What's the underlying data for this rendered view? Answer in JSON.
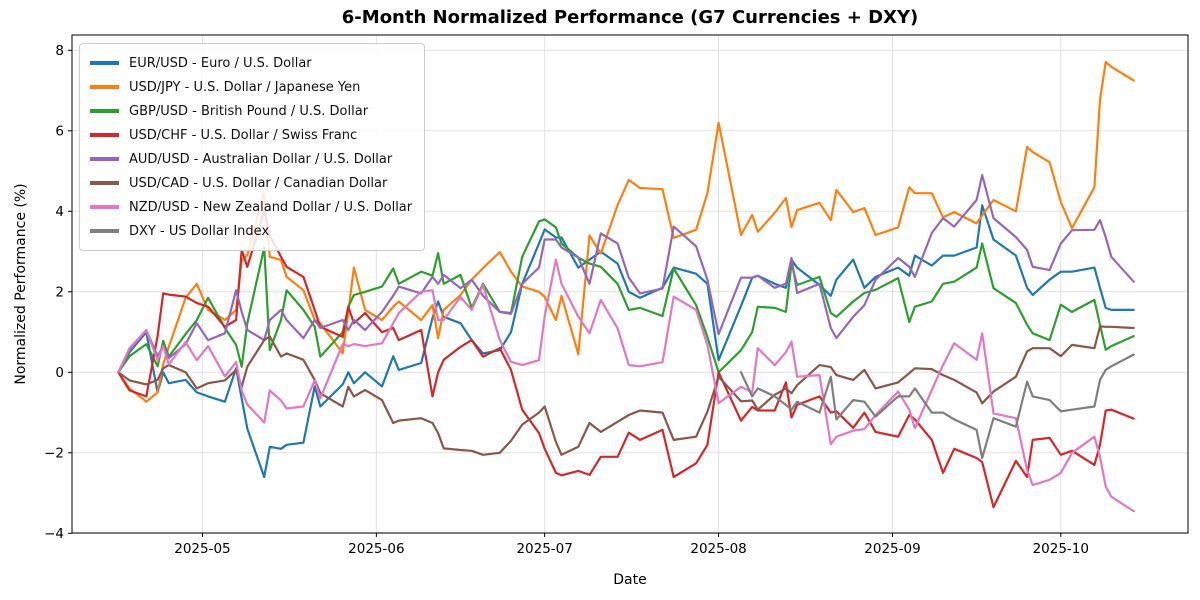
{
  "header": {
    "title": "6-Month Normalized Performance (G7 Currencies + DXY)"
  },
  "axes": {
    "xlabel": "Date",
    "ylabel": "Normalized Performance (%)",
    "x_ticks": [
      {
        "date": "2025-05-01",
        "label": "2025-05"
      },
      {
        "date": "2025-06-01",
        "label": "2025-06"
      },
      {
        "date": "2025-07-01",
        "label": "2025-07"
      },
      {
        "date": "2025-08-01",
        "label": "2025-08"
      },
      {
        "date": "2025-09-01",
        "label": "2025-09"
      },
      {
        "date": "2025-10-01",
        "label": "2025-10"
      }
    ],
    "y_ticks": [
      8,
      6,
      4,
      2,
      0,
      -2,
      -4
    ]
  },
  "chart_data": {
    "type": "line",
    "title": "6-Month Normalized Performance (G7 Currencies + DXY)",
    "xlabel": "Date",
    "ylabel": "Normalized Performance (%)",
    "grid": true,
    "legend_position": "upper left",
    "ylim": [
      -4.05,
      8.38
    ],
    "xlim": [
      "2025-04-08",
      "2025-10-24"
    ],
    "x": [
      "2025-04-16",
      "2025-04-18",
      "2025-04-21",
      "2025-04-23",
      "2025-04-24",
      "2025-04-25",
      "2025-04-28",
      "2025-04-30",
      "2025-05-02",
      "2025-05-05",
      "2025-05-07",
      "2025-05-08",
      "2025-05-09",
      "2025-05-12",
      "2025-05-13",
      "2025-05-15",
      "2025-05-16",
      "2025-05-19",
      "2025-05-21",
      "2025-05-22",
      "2025-05-26",
      "2025-05-27",
      "2025-05-28",
      "2025-05-30",
      "2025-06-02",
      "2025-06-04",
      "2025-06-05",
      "2025-06-09",
      "2025-06-11",
      "2025-06-12",
      "2025-06-13",
      "2025-06-16",
      "2025-06-18",
      "2025-06-20",
      "2025-06-23",
      "2025-06-25",
      "2025-06-27",
      "2025-06-30",
      "2025-07-01",
      "2025-07-03",
      "2025-07-04",
      "2025-07-07",
      "2025-07-09",
      "2025-07-11",
      "2025-07-14",
      "2025-07-16",
      "2025-07-18",
      "2025-07-22",
      "2025-07-24",
      "2025-07-28",
      "2025-07-30",
      "2025-08-01",
      "2025-08-05",
      "2025-08-07",
      "2025-08-08",
      "2025-08-11",
      "2025-08-13",
      "2025-08-14",
      "2025-08-15",
      "2025-08-19",
      "2025-08-21",
      "2025-08-22",
      "2025-08-25",
      "2025-08-27",
      "2025-08-29",
      "2025-09-02",
      "2025-09-04",
      "2025-09-05",
      "2025-09-08",
      "2025-09-10",
      "2025-09-12",
      "2025-09-16",
      "2025-09-17",
      "2025-09-19",
      "2025-09-23",
      "2025-09-25",
      "2025-09-26",
      "2025-09-29",
      "2025-10-01",
      "2025-10-03",
      "2025-10-07",
      "2025-10-08",
      "2025-10-09",
      "2025-10-10",
      "2025-10-14"
    ],
    "series": [
      {
        "name": "EUR/USD - Euro / U.S. Dollar",
        "color": "#1f77b4",
        "values": [
          0,
          0.5,
          1.0,
          -0.5,
          0.0,
          -0.27,
          -0.19,
          -0.5,
          -0.6,
          -0.73,
          0.1,
          -0.65,
          -1.4,
          -2.6,
          -1.85,
          -1.9,
          -1.8,
          -1.75,
          -0.35,
          -0.85,
          -0.3,
          0.0,
          -0.27,
          0.0,
          -0.35,
          0.4,
          0.06,
          0.23,
          1.35,
          1.76,
          1.38,
          1.22,
          0.8,
          0.47,
          0.55,
          1.0,
          2.2,
          3.2,
          3.55,
          3.35,
          3.35,
          2.6,
          2.8,
          3.0,
          2.7,
          2.0,
          1.85,
          2.1,
          2.6,
          2.45,
          2.2,
          0.3,
          1.65,
          2.35,
          2.4,
          2.2,
          2.1,
          2.8,
          2.6,
          2.17,
          1.9,
          2.3,
          2.8,
          2.1,
          2.37,
          2.6,
          2.4,
          2.9,
          2.65,
          2.9,
          2.9,
          3.1,
          4.15,
          3.3,
          2.9,
          2.1,
          1.92,
          2.3,
          2.5,
          2.5,
          2.6,
          2.1,
          1.6,
          1.55,
          1.55
        ]
      },
      {
        "name": "USD/JPY - U.S. Dollar / Japanese Yen",
        "color": "#ff7f0e",
        "values": [
          0,
          -0.4,
          -0.73,
          -0.5,
          0.2,
          0.63,
          1.85,
          2.2,
          1.55,
          1.3,
          1.55,
          2.79,
          2.91,
          4.45,
          2.87,
          2.79,
          2.37,
          2.04,
          1.3,
          1.22,
          0.47,
          1.5,
          2.6,
          1.55,
          1.3,
          1.63,
          1.76,
          1.3,
          1.67,
          0.85,
          1.55,
          1.92,
          2.3,
          2.59,
          2.99,
          2.5,
          2.13,
          2.0,
          1.87,
          1.3,
          1.9,
          0.45,
          3.4,
          2.95,
          4.16,
          4.78,
          4.58,
          4.55,
          3.34,
          3.54,
          4.45,
          6.2,
          3.41,
          3.91,
          3.49,
          3.96,
          4.33,
          3.61,
          4.03,
          4.21,
          3.78,
          4.53,
          3.98,
          4.08,
          3.41,
          3.6,
          4.6,
          4.45,
          4.45,
          3.85,
          3.98,
          3.7,
          3.9,
          4.28,
          4.0,
          5.6,
          5.47,
          5.22,
          4.23,
          3.58,
          4.6,
          6.77,
          7.71,
          7.59,
          7.25
        ]
      },
      {
        "name": "GBP/USD - British Pound / U.S. Dollar",
        "color": "#2ca02c",
        "values": [
          0,
          0.4,
          0.7,
          0.15,
          0.78,
          0.39,
          0.95,
          1.3,
          1.85,
          1.1,
          0.68,
          0.14,
          1.22,
          3.1,
          0.55,
          1.3,
          2.04,
          1.55,
          1.13,
          0.39,
          1.0,
          1.63,
          1.92,
          2.0,
          2.13,
          2.58,
          2.2,
          2.5,
          2.4,
          2.96,
          2.2,
          2.42,
          1.6,
          2.2,
          1.5,
          1.47,
          2.87,
          3.75,
          3.8,
          3.6,
          3.2,
          2.85,
          2.7,
          2.62,
          2.2,
          1.55,
          1.6,
          1.4,
          2.58,
          1.67,
          0.88,
          0.0,
          0.55,
          1.0,
          1.63,
          1.6,
          1.5,
          2.7,
          2.17,
          2.37,
          1.47,
          1.38,
          1.76,
          1.97,
          2.05,
          2.34,
          1.25,
          1.63,
          1.76,
          2.2,
          2.25,
          2.6,
          3.2,
          2.09,
          1.72,
          1.18,
          0.97,
          0.8,
          1.68,
          1.5,
          1.8,
          1.18,
          0.56,
          0.65,
          0.9
        ]
      },
      {
        "name": "USD/CHF - U.S. Dollar / Swiss Franc",
        "color": "#d62728",
        "values": [
          0,
          -0.45,
          -0.6,
          0.9,
          1.96,
          1.93,
          1.88,
          1.72,
          1.63,
          1.13,
          1.3,
          3.04,
          2.62,
          4.0,
          3.4,
          2.87,
          2.62,
          2.37,
          1.55,
          1.13,
          0.88,
          1.63,
          1.22,
          1.47,
          1.0,
          1.1,
          0.8,
          1.05,
          -0.6,
          0.0,
          0.31,
          0.63,
          0.8,
          0.39,
          0.6,
          0.06,
          -0.93,
          -1.51,
          -1.9,
          -2.5,
          -2.56,
          -2.45,
          -2.55,
          -2.1,
          -2.1,
          -1.5,
          -1.68,
          -1.43,
          -2.6,
          -2.26,
          -1.8,
          0.0,
          -1.2,
          -0.86,
          -0.95,
          -0.95,
          -0.25,
          -1.12,
          -0.81,
          -0.6,
          -1.0,
          -0.97,
          -1.38,
          -1.0,
          -1.48,
          -1.6,
          -1.06,
          -1.17,
          -1.68,
          -2.5,
          -1.9,
          -2.13,
          -2.23,
          -3.35,
          -2.2,
          -2.6,
          -1.68,
          -1.63,
          -2.05,
          -1.95,
          -2.3,
          -1.8,
          -0.95,
          -0.93,
          -1.15
        ]
      },
      {
        "name": "AUD/USD - Australian Dollar / U.S. Dollar",
        "color": "#9467bd",
        "values": [
          0,
          0.55,
          1.05,
          0.4,
          0.65,
          0.35,
          0.7,
          1.22,
          0.8,
          0.97,
          2.04,
          1.5,
          1.05,
          0.8,
          1.3,
          1.55,
          1.3,
          0.85,
          1.3,
          1.1,
          1.3,
          1.05,
          1.3,
          1.05,
          1.5,
          1.9,
          2.13,
          1.96,
          2.37,
          2.2,
          2.42,
          2.09,
          2.3,
          1.9,
          1.5,
          1.45,
          2.2,
          2.6,
          3.3,
          3.3,
          3.1,
          2.85,
          2.2,
          3.45,
          3.2,
          2.35,
          1.96,
          2.08,
          3.62,
          3.13,
          2.3,
          0.95,
          2.35,
          2.35,
          2.4,
          2.1,
          2.2,
          2.84,
          1.97,
          2.2,
          1.1,
          0.85,
          1.38,
          1.67,
          2.3,
          2.84,
          2.62,
          2.37,
          3.46,
          3.83,
          3.62,
          4.28,
          4.9,
          3.83,
          3.36,
          3.04,
          2.62,
          2.54,
          3.2,
          3.53,
          3.54,
          3.78,
          3.36,
          2.87,
          2.25
        ]
      },
      {
        "name": "USD/CAD - U.S. Dollar / Canadian Dollar",
        "color": "#8c564b",
        "values": [
          0,
          -0.2,
          -0.3,
          -0.19,
          0.1,
          0.18,
          0.0,
          -0.4,
          -0.27,
          -0.2,
          0.06,
          -0.36,
          0.14,
          0.8,
          0.89,
          0.39,
          0.47,
          0.31,
          -0.19,
          -0.52,
          -0.85,
          -0.36,
          -0.6,
          -0.44,
          -0.69,
          -1.26,
          -1.2,
          -1.14,
          -1.26,
          -1.51,
          -1.89,
          -1.93,
          -1.95,
          -2.05,
          -2.0,
          -1.7,
          -1.3,
          -1.0,
          -0.85,
          -1.73,
          -2.05,
          -1.85,
          -1.26,
          -1.48,
          -1.23,
          -1.06,
          -0.95,
          -1.0,
          -1.68,
          -1.6,
          -0.98,
          -0.11,
          -0.72,
          -0.7,
          -0.93,
          -0.56,
          -0.4,
          -0.52,
          -0.32,
          0.18,
          0.13,
          -0.07,
          -0.19,
          0.06,
          -0.4,
          -0.25,
          -0.02,
          0.1,
          0.08,
          -0.07,
          -0.19,
          -0.5,
          -0.77,
          -0.48,
          -0.11,
          0.52,
          0.6,
          0.6,
          0.4,
          0.68,
          0.6,
          1.14,
          1.13,
          1.13,
          1.1
        ]
      },
      {
        "name": "NZD/USD - New Zealand Dollar / U.S. Dollar",
        "color": "#e377c2",
        "values": [
          0,
          0.6,
          1.05,
          0.3,
          0.65,
          0.2,
          0.75,
          0.3,
          0.65,
          -0.1,
          0.25,
          -0.45,
          -0.8,
          -1.25,
          -0.45,
          -0.7,
          -0.9,
          -0.85,
          -0.2,
          -0.65,
          0.7,
          0.65,
          0.7,
          0.65,
          0.72,
          1.22,
          1.47,
          2.0,
          2.04,
          1.3,
          1.3,
          1.87,
          1.55,
          2.17,
          0.8,
          0.26,
          0.18,
          0.3,
          1.4,
          2.8,
          2.2,
          1.38,
          0.97,
          1.8,
          1.09,
          0.18,
          0.15,
          0.25,
          1.88,
          1.55,
          0.68,
          -0.77,
          -0.36,
          -0.5,
          0.6,
          0.18,
          0.5,
          0.76,
          -0.11,
          -0.07,
          -1.79,
          -1.6,
          -1.45,
          -1.41,
          -1.06,
          -0.48,
          -0.93,
          -1.39,
          -0.44,
          0.18,
          0.72,
          0.31,
          0.97,
          -1.02,
          -1.14,
          -2.43,
          -2.8,
          -2.67,
          -2.5,
          -2.0,
          -1.6,
          -2.1,
          -2.84,
          -3.09,
          -3.45
        ]
      },
      {
        "name": "DXY - US Dollar Index",
        "color": "#7f7f7f",
        "values": [
          null,
          null,
          null,
          null,
          null,
          null,
          null,
          null,
          null,
          null,
          null,
          null,
          null,
          null,
          null,
          null,
          null,
          null,
          null,
          null,
          null,
          null,
          null,
          null,
          null,
          null,
          null,
          null,
          null,
          null,
          null,
          null,
          null,
          null,
          null,
          null,
          null,
          null,
          null,
          null,
          null,
          null,
          null,
          null,
          null,
          null,
          null,
          null,
          null,
          null,
          null,
          null,
          0.0,
          -0.6,
          -0.4,
          -0.6,
          -0.81,
          -0.93,
          -0.73,
          -1.0,
          -0.11,
          -1.17,
          -0.69,
          -0.73,
          -1.1,
          -0.6,
          -0.6,
          -0.4,
          -1.0,
          -1.0,
          -1.17,
          -1.43,
          -2.13,
          -1.14,
          -1.35,
          -0.23,
          -0.6,
          -0.69,
          -0.97,
          -0.93,
          -0.85,
          -0.19,
          0.06,
          0.15,
          0.44
        ]
      }
    ]
  }
}
